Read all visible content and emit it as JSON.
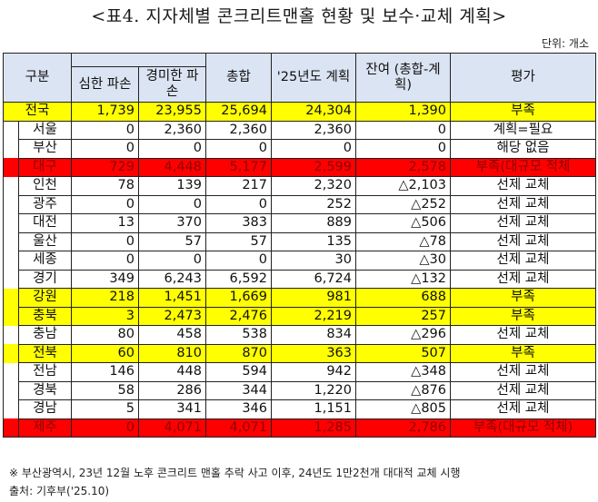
{
  "title": "<표4. 지자체별 콘크리트맨홀 현황 및 보수·교체 계획>",
  "unit": "단위: 개소",
  "headers": {
    "region": "구분",
    "severe_damage": "심한 파손",
    "minor_damage": "경미한 파손",
    "total": "총합",
    "plan_2025": "'25년도 계획",
    "remaining": "잔여 (총합-계획)",
    "evaluation": "평가"
  },
  "colors": {
    "header_bg": "#dbe4f3",
    "highlight_yellow": "#ffff00",
    "highlight_red": "#ff0000"
  },
  "rows": [
    {
      "region": "전국",
      "severe": "1,739",
      "minor": "23,955",
      "total": "25,694",
      "plan": "24,304",
      "remaining": "1,390",
      "evaluation": "부족",
      "highlight": "yellow"
    },
    {
      "region": "서울",
      "severe": "0",
      "minor": "2,360",
      "total": "2,360",
      "plan": "2,360",
      "remaining": "0",
      "evaluation": "계획=필요",
      "highlight": "none"
    },
    {
      "region": "부산",
      "severe": "0",
      "minor": "0",
      "total": "0",
      "plan": "0",
      "remaining": "0",
      "evaluation": "해당 없음",
      "highlight": "none"
    },
    {
      "region": "대구",
      "severe": "729",
      "minor": "4,448",
      "total": "5,177",
      "plan": "2,599",
      "remaining": "2,578",
      "evaluation": "부족(대규모 적체",
      "highlight": "red"
    },
    {
      "region": "인천",
      "severe": "78",
      "minor": "139",
      "total": "217",
      "plan": "2,320",
      "remaining": "△2,103",
      "evaluation": "선제 교체",
      "highlight": "none"
    },
    {
      "region": "광주",
      "severe": "0",
      "minor": "0",
      "total": "0",
      "plan": "252",
      "remaining": "△252",
      "evaluation": "선제 교체",
      "highlight": "none"
    },
    {
      "region": "대전",
      "severe": "13",
      "minor": "370",
      "total": "383",
      "plan": "889",
      "remaining": "△506",
      "evaluation": "선제 교체",
      "highlight": "none"
    },
    {
      "region": "울산",
      "severe": "0",
      "minor": "57",
      "total": "57",
      "plan": "135",
      "remaining": "△78",
      "evaluation": "선제 교체",
      "highlight": "none"
    },
    {
      "region": "세종",
      "severe": "0",
      "minor": "0",
      "total": "0",
      "plan": "30",
      "remaining": "△30",
      "evaluation": "선제 교체",
      "highlight": "none"
    },
    {
      "region": "경기",
      "severe": "349",
      "minor": "6,243",
      "total": "6,592",
      "plan": "6,724",
      "remaining": "△132",
      "evaluation": "선제 교체",
      "highlight": "none"
    },
    {
      "region": "강원",
      "severe": "218",
      "minor": "1,451",
      "total": "1,669",
      "plan": "981",
      "remaining": "688",
      "evaluation": "부족",
      "highlight": "yellow"
    },
    {
      "region": "충북",
      "severe": "3",
      "minor": "2,473",
      "total": "2,476",
      "plan": "2,219",
      "remaining": "257",
      "evaluation": "부족",
      "highlight": "yellow"
    },
    {
      "region": "충남",
      "severe": "80",
      "minor": "458",
      "total": "538",
      "plan": "834",
      "remaining": "△296",
      "evaluation": "선제 교체",
      "highlight": "none"
    },
    {
      "region": "전북",
      "severe": "60",
      "minor": "810",
      "total": "870",
      "plan": "363",
      "remaining": "507",
      "evaluation": "부족",
      "highlight": "yellow"
    },
    {
      "region": "전남",
      "severe": "146",
      "minor": "448",
      "total": "594",
      "plan": "942",
      "remaining": "△348",
      "evaluation": "선제 교체",
      "highlight": "none"
    },
    {
      "region": "경북",
      "severe": "58",
      "minor": "286",
      "total": "344",
      "plan": "1,220",
      "remaining": "△876",
      "evaluation": "선제 교체",
      "highlight": "none"
    },
    {
      "region": "경남",
      "severe": "5",
      "minor": "341",
      "total": "346",
      "plan": "1,151",
      "remaining": "△805",
      "evaluation": "선제 교체",
      "highlight": "none"
    },
    {
      "region": "제주",
      "severe": "0",
      "minor": "4,071",
      "total": "4,071",
      "plan": "1,285",
      "remaining": "2,786",
      "evaluation": "부족(대규모 적체)",
      "highlight": "red"
    }
  ],
  "footnote": "※ 부산광역시, 23년 12월 노후 콘크리트 맨홀 추락 사고 이후, 24년도 1만2천개 대대적 교체 시행",
  "source": "출처: 기후부('25.10)"
}
